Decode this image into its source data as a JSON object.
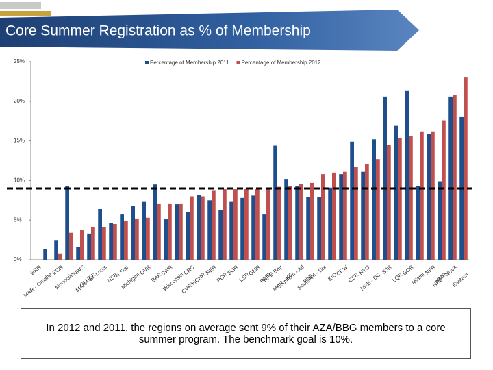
{
  "chart_data": {
    "type": "bar",
    "title": "Core Summer Registration as % of Membership",
    "categories": [
      "BRR",
      "MAR - Omaha",
      "ECR",
      "Mountain",
      "NWC",
      "GLHER",
      "MAR - St. Louis",
      "NSR",
      "N Star",
      "Michigan",
      "OVR",
      "BAR",
      "SWR",
      "Wisconsin",
      "CRC",
      "CVR/HCHR",
      "NER",
      "PCR",
      "EGR",
      "LSR",
      "GMR",
      "RMR",
      "NRE Bay",
      "MAR - KC",
      "Southern - Atl",
      "Philly",
      "Southern - Dix",
      "KIO",
      "CRW",
      "CSR",
      "NYO",
      "NRE - DC",
      "SJR",
      "LQR",
      "GCR",
      "Miami",
      "NFR",
      "KMR",
      "NRE - NoVA",
      "Eastern"
    ],
    "series": [
      {
        "name": "Percentage of Membership 2011",
        "color": "#1f4e8c",
        "values": [
          0,
          1.3,
          2.4,
          9.3,
          1.6,
          3.3,
          6.4,
          4.6,
          5.7,
          6.8,
          7.3,
          9.5,
          5.1,
          7.0,
          6.0,
          8.2,
          7.5,
          6.3,
          7.3,
          7.8,
          8.1,
          5.7,
          14.4,
          10.2,
          9.3,
          7.9,
          7.9,
          9.1,
          10.8,
          14.9,
          11.1,
          15.2,
          20.6,
          16.9,
          21.3,
          9.3,
          15.9,
          9.9,
          20.6,
          18.0
        ]
      },
      {
        "name": "Percentage of Membership 2012",
        "color": "#c0504d",
        "values": [
          0,
          0,
          0.8,
          3.4,
          3.8,
          4.1,
          4.1,
          4.5,
          4.9,
          5.2,
          5.3,
          7.1,
          7.1,
          7.1,
          8.0,
          8.0,
          8.7,
          8.9,
          8.9,
          8.9,
          8.9,
          9.0,
          9.2,
          9.3,
          9.6,
          9.7,
          10.8,
          11.0,
          11.1,
          11.7,
          12.1,
          12.7,
          14.5,
          15.4,
          15.6,
          16.2,
          16.2,
          17.6,
          20.8,
          23.0
        ]
      }
    ],
    "ylim": [
      0,
      25
    ],
    "yticks": [
      {
        "value": 0,
        "label": "0%"
      },
      {
        "value": 5,
        "label": "5%"
      },
      {
        "value": 10,
        "label": "10%"
      },
      {
        "value": 15,
        "label": "15%"
      },
      {
        "value": 20,
        "label": "20%"
      },
      {
        "value": 25,
        "label": "25%"
      }
    ],
    "reference_line": 9,
    "legend": "top",
    "annotation": "In 2012 and 2011, the regions on average sent 9% of their AZA/BBG members to a core summer program.  The benchmark goal is 10%."
  }
}
